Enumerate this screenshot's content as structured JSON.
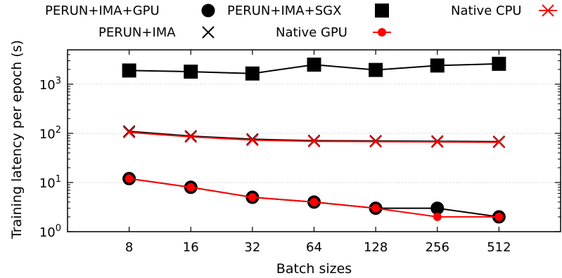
{
  "chart_data": {
    "type": "line",
    "xlabel": "Batch sizes",
    "ylabel": "Training latency per epoch (s)",
    "yscale": "log",
    "ylim": [
      1,
      5000
    ],
    "categories": [
      "8",
      "16",
      "32",
      "64",
      "128",
      "256",
      "512"
    ],
    "y_ticks": [
      {
        "base": "10",
        "exp": "0",
        "value": 1
      },
      {
        "base": "10",
        "exp": "1",
        "value": 10
      },
      {
        "base": "10",
        "exp": "2",
        "value": 100
      },
      {
        "base": "10",
        "exp": "3",
        "value": 1000
      }
    ],
    "grid": "horizontal dotted",
    "legend_position": "top",
    "series": [
      {
        "name": "PERUN+IMA+GPU",
        "marker": "circle",
        "color": "#000000",
        "values": [
          12,
          8,
          5,
          4,
          3,
          3,
          2
        ]
      },
      {
        "name": "PERUN+IMA+SGX",
        "marker": "square",
        "color": "#000000",
        "values": [
          1900,
          1800,
          1650,
          2500,
          1950,
          2400,
          2600
        ]
      },
      {
        "name": "Native CPU",
        "marker": "x",
        "color": "#ff0000",
        "values": [
          105,
          85,
          73,
          69,
          68,
          67,
          66
        ]
      },
      {
        "name": "PERUN+IMA",
        "marker": "x",
        "color": "#000000",
        "values": [
          110,
          88,
          76,
          71,
          70,
          69,
          68
        ]
      },
      {
        "name": "Native GPU",
        "marker": "dot",
        "color": "#ff0000",
        "values": [
          12,
          8,
          5,
          4,
          3,
          2,
          2
        ]
      }
    ]
  }
}
